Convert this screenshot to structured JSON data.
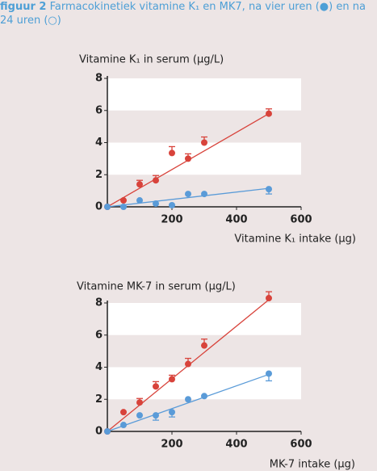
{
  "figure": {
    "label": "figuur 2",
    "text": "Farmacokinetiek vitamine K₁ en MK7, na vier uren (●) en na 24 uren (○)"
  },
  "chart_data": [
    {
      "type": "scatter",
      "y_label": "Vitamine K₁ in serum (µg/L)",
      "x_label": "Vitamine K₁ intake (µg)",
      "xlim": [
        0,
        600
      ],
      "xticks": [
        200,
        400,
        600
      ],
      "ylim": [
        0,
        8
      ],
      "yticks": [
        0,
        2,
        4,
        6,
        8
      ],
      "x": [
        0,
        50,
        100,
        150,
        200,
        250,
        300,
        500
      ],
      "series": [
        {
          "color": "#d8433b",
          "error_direction": "up",
          "values": [
            0,
            0.4,
            1.4,
            1.65,
            3.35,
            3.0,
            4.0,
            5.8
          ],
          "errors": [
            0,
            0,
            0.25,
            0.3,
            0.4,
            0.3,
            0.35,
            0.3
          ],
          "fit_line": {
            "x": [
              0,
              500
            ],
            "y": [
              0,
              5.8
            ]
          }
        },
        {
          "color": "#5a9bd8",
          "error_direction": "down",
          "values": [
            0,
            0,
            0.4,
            0.2,
            0.1,
            0.8,
            0.8,
            1.1
          ],
          "errors": [
            0,
            0,
            0,
            0,
            0,
            0,
            0,
            0.3
          ],
          "fit_line": {
            "x": [
              0,
              500
            ],
            "y": [
              0,
              1.15
            ]
          }
        }
      ]
    },
    {
      "type": "scatter",
      "y_label": "Vitamine MK-7 in serum (µg/L)",
      "x_label": "MK-7 intake (µg)",
      "xlim": [
        0,
        600
      ],
      "xticks": [
        200,
        400,
        600
      ],
      "ylim": [
        0,
        8
      ],
      "yticks": [
        0,
        2,
        4,
        6,
        8
      ],
      "x": [
        0,
        50,
        100,
        150,
        200,
        250,
        300,
        500
      ],
      "series": [
        {
          "color": "#d8433b",
          "error_direction": "up",
          "values": [
            0,
            1.2,
            1.8,
            2.8,
            3.25,
            4.2,
            5.35,
            8.3
          ],
          "errors": [
            0,
            0,
            0.25,
            0.3,
            0.25,
            0.35,
            0.4,
            0.4
          ],
          "fit_line": {
            "x": [
              0,
              500
            ],
            "y": [
              0,
              8.2
            ]
          }
        },
        {
          "color": "#5a9bd8",
          "error_direction": "down",
          "values": [
            0,
            0.4,
            1.0,
            1.0,
            1.2,
            2.0,
            2.2,
            3.6
          ],
          "errors": [
            0,
            0,
            0,
            0.3,
            0.3,
            0,
            0,
            0.45
          ],
          "fit_line": {
            "x": [
              0,
              500
            ],
            "y": [
              0,
              3.55
            ]
          }
        }
      ]
    }
  ]
}
